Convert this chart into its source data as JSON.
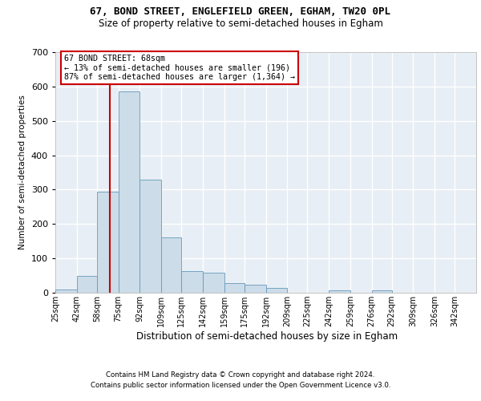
{
  "title1": "67, BOND STREET, ENGLEFIELD GREEN, EGHAM, TW20 0PL",
  "title2": "Size of property relative to semi-detached houses in Egham",
  "xlabel": "Distribution of semi-detached houses by size in Egham",
  "ylabel": "Number of semi-detached properties",
  "footer1": "Contains HM Land Registry data © Crown copyright and database right 2024.",
  "footer2": "Contains public sector information licensed under the Open Government Licence v3.0.",
  "annotation_line1": "67 BOND STREET: 68sqm",
  "annotation_line2": "← 13% of semi-detached houses are smaller (196)",
  "annotation_line3": "87% of semi-detached houses are larger (1,364) →",
  "property_size": 68,
  "bar_color": "#ccdce8",
  "bar_edge_color": "#6699bb",
  "vline_color": "#cc0000",
  "background_color": "#e8eef5",
  "grid_color": "#d0d8e0",
  "bins": [
    25,
    42,
    58,
    75,
    92,
    109,
    125,
    142,
    159,
    175,
    192,
    209,
    225,
    242,
    259,
    276,
    292,
    309,
    326,
    342
  ],
  "counts": [
    10,
    48,
    295,
    585,
    330,
    160,
    62,
    58,
    28,
    24,
    15,
    0,
    0,
    7,
    0,
    7,
    0,
    0,
    0,
    0
  ],
  "ylim": [
    0,
    700
  ],
  "yticks": [
    0,
    100,
    200,
    300,
    400,
    500,
    600,
    700
  ]
}
